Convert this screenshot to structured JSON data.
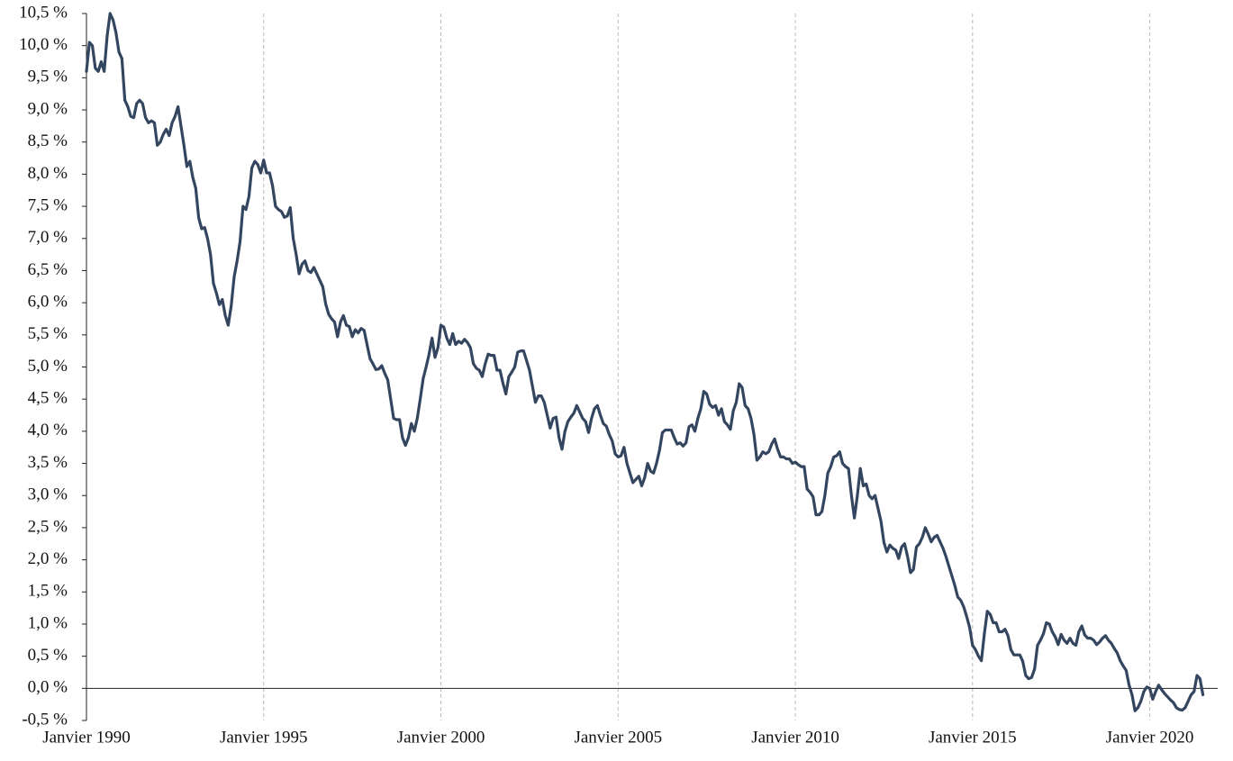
{
  "chart_data": {
    "type": "line",
    "color": "#34465f",
    "grid": "x",
    "ylim": [
      -0.5,
      10.5
    ],
    "yticks": [
      {
        "value": -0.5,
        "label": "-0,5 %"
      },
      {
        "value": 0,
        "label": "0,0 %"
      },
      {
        "value": 0.5,
        "label": "0,5 %"
      },
      {
        "value": 1,
        "label": "1,0 %"
      },
      {
        "value": 1.5,
        "label": "1,5 %"
      },
      {
        "value": 2,
        "label": "2,0 %"
      },
      {
        "value": 2.5,
        "label": "2,5 %"
      },
      {
        "value": 3,
        "label": "3,0 %"
      },
      {
        "value": 3.5,
        "label": "3,5 %"
      },
      {
        "value": 4,
        "label": "4,0 %"
      },
      {
        "value": 4.5,
        "label": "4,5 %"
      },
      {
        "value": 5,
        "label": "5,0 %"
      },
      {
        "value": 5.5,
        "label": "5,5 %"
      },
      {
        "value": 6,
        "label": "6,0 %"
      },
      {
        "value": 6.5,
        "label": "6,5 %"
      },
      {
        "value": 7,
        "label": "7,0 %"
      },
      {
        "value": 7.5,
        "label": "7,5 %"
      },
      {
        "value": 8,
        "label": "8,0 %"
      },
      {
        "value": 8.5,
        "label": "8,5 %"
      },
      {
        "value": 9,
        "label": "9,0 %"
      },
      {
        "value": 9.5,
        "label": "9,5 %"
      },
      {
        "value": 10,
        "label": "10,0 %"
      },
      {
        "value": 10.5,
        "label": "10,5 %"
      }
    ],
    "xlim": [
      "1990-01",
      "2021-12"
    ],
    "xticks": [
      {
        "value": "1990-01",
        "label": "Janvier 1990"
      },
      {
        "value": "1995-01",
        "label": "Janvier 1995"
      },
      {
        "value": "2000-01",
        "label": "Janvier 2000"
      },
      {
        "value": "2005-01",
        "label": "Janvier 2005"
      },
      {
        "value": "2010-01",
        "label": "Janvier 2010"
      },
      {
        "value": "2015-01",
        "label": "Janvier 2015"
      },
      {
        "value": "2020-01",
        "label": "Janvier 2020"
      }
    ],
    "x": [
      "1990-01",
      "1990-02",
      "1990-03",
      "1990-04",
      "1990-05",
      "1990-06",
      "1990-07",
      "1990-08",
      "1990-09",
      "1990-10",
      "1990-11",
      "1990-12",
      "1991-01",
      "1991-02",
      "1991-03",
      "1991-04",
      "1991-05",
      "1991-06",
      "1991-07",
      "1991-08",
      "1991-09",
      "1991-10",
      "1991-11",
      "1991-12",
      "1992-01",
      "1992-02",
      "1992-03",
      "1992-04",
      "1992-05",
      "1992-06",
      "1992-07",
      "1992-08",
      "1992-09",
      "1992-10",
      "1992-11",
      "1992-12",
      "1993-01",
      "1993-02",
      "1993-03",
      "1993-04",
      "1993-05",
      "1993-06",
      "1993-07",
      "1993-08",
      "1993-09",
      "1993-10",
      "1993-11",
      "1993-12",
      "1994-01",
      "1994-02",
      "1994-03",
      "1994-04",
      "1994-05",
      "1994-06",
      "1994-07",
      "1994-08",
      "1994-09",
      "1994-10",
      "1994-11",
      "1994-12",
      "1995-01",
      "1995-02",
      "1995-03",
      "1995-04",
      "1995-05",
      "1995-06",
      "1995-07",
      "1995-08",
      "1995-09",
      "1995-10",
      "1995-11",
      "1995-12",
      "1996-01",
      "1996-02",
      "1996-03",
      "1996-04",
      "1996-05",
      "1996-06",
      "1996-07",
      "1996-08",
      "1996-09",
      "1996-10",
      "1996-11",
      "1996-12",
      "1997-01",
      "1997-02",
      "1997-03",
      "1997-04",
      "1997-05",
      "1997-06",
      "1997-07",
      "1997-08",
      "1997-09",
      "1997-10",
      "1997-11",
      "1997-12",
      "1998-01",
      "1998-02",
      "1998-03",
      "1998-04",
      "1998-05",
      "1998-06",
      "1998-07",
      "1998-08",
      "1998-09",
      "1998-10",
      "1998-11",
      "1998-12",
      "1999-01",
      "1999-02",
      "1999-03",
      "1999-04",
      "1999-05",
      "1999-06",
      "1999-07",
      "1999-08",
      "1999-09",
      "1999-10",
      "1999-11",
      "1999-12",
      "2000-01",
      "2000-02",
      "2000-03",
      "2000-04",
      "2000-05",
      "2000-06",
      "2000-07",
      "2000-08",
      "2000-09",
      "2000-10",
      "2000-11",
      "2000-12",
      "2001-01",
      "2001-02",
      "2001-03",
      "2001-04",
      "2001-05",
      "2001-06",
      "2001-07",
      "2001-08",
      "2001-09",
      "2001-10",
      "2001-11",
      "2001-12",
      "2002-01",
      "2002-02",
      "2002-03",
      "2002-04",
      "2002-05",
      "2002-06",
      "2002-07",
      "2002-08",
      "2002-09",
      "2002-10",
      "2002-11",
      "2002-12",
      "2003-01",
      "2003-02",
      "2003-03",
      "2003-04",
      "2003-05",
      "2003-06",
      "2003-07",
      "2003-08",
      "2003-09",
      "2003-10",
      "2003-11",
      "2003-12",
      "2004-01",
      "2004-02",
      "2004-03",
      "2004-04",
      "2004-05",
      "2004-06",
      "2004-07",
      "2004-08",
      "2004-09",
      "2004-10",
      "2004-11",
      "2004-12",
      "2005-01",
      "2005-02",
      "2005-03",
      "2005-04",
      "2005-05",
      "2005-06",
      "2005-07",
      "2005-08",
      "2005-09",
      "2005-10",
      "2005-11",
      "2005-12",
      "2006-01",
      "2006-02",
      "2006-03",
      "2006-04",
      "2006-05",
      "2006-06",
      "2006-07",
      "2006-08",
      "2006-09",
      "2006-10",
      "2006-11",
      "2006-12",
      "2007-01",
      "2007-02",
      "2007-03",
      "2007-04",
      "2007-05",
      "2007-06",
      "2007-07",
      "2007-08",
      "2007-09",
      "2007-10",
      "2007-11",
      "2007-12",
      "2008-01",
      "2008-02",
      "2008-03",
      "2008-04",
      "2008-05",
      "2008-06",
      "2008-07",
      "2008-08",
      "2008-09",
      "2008-10",
      "2008-11",
      "2008-12",
      "2009-01",
      "2009-02",
      "2009-03",
      "2009-04",
      "2009-05",
      "2009-06",
      "2009-07",
      "2009-08",
      "2009-09",
      "2009-10",
      "2009-11",
      "2009-12",
      "2010-01",
      "2010-02",
      "2010-03",
      "2010-04",
      "2010-05",
      "2010-06",
      "2010-07",
      "2010-08",
      "2010-09",
      "2010-10",
      "2010-11",
      "2010-12",
      "2011-01",
      "2011-02",
      "2011-03",
      "2011-04",
      "2011-05",
      "2011-06",
      "2011-07",
      "2011-08",
      "2011-09",
      "2011-10",
      "2011-11",
      "2011-12",
      "2012-01",
      "2012-02",
      "2012-03",
      "2012-04",
      "2012-05",
      "2012-06",
      "2012-07",
      "2012-08",
      "2012-09",
      "2012-10",
      "2012-11",
      "2012-12",
      "2013-01",
      "2013-02",
      "2013-03",
      "2013-04",
      "2013-05",
      "2013-06",
      "2013-07",
      "2013-08",
      "2013-09",
      "2013-10",
      "2013-11",
      "2013-12",
      "2014-01",
      "2014-02",
      "2014-03",
      "2014-04",
      "2014-05",
      "2014-06",
      "2014-07",
      "2014-08",
      "2014-09",
      "2014-10",
      "2014-11",
      "2014-12",
      "2015-01",
      "2015-02",
      "2015-03",
      "2015-04",
      "2015-05",
      "2015-06",
      "2015-07",
      "2015-08",
      "2015-09",
      "2015-10",
      "2015-11",
      "2015-12",
      "2016-01",
      "2016-02",
      "2016-03",
      "2016-04",
      "2016-05",
      "2016-06",
      "2016-07",
      "2016-08",
      "2016-09",
      "2016-10",
      "2016-11",
      "2016-12",
      "2017-01",
      "2017-02",
      "2017-03",
      "2017-04",
      "2017-05",
      "2017-06",
      "2017-07",
      "2017-08",
      "2017-09",
      "2017-10",
      "2017-11",
      "2017-12",
      "2018-01",
      "2018-02",
      "2018-03",
      "2018-04",
      "2018-05",
      "2018-06",
      "2018-07",
      "2018-08",
      "2018-09",
      "2018-10",
      "2018-11",
      "2018-12",
      "2019-01",
      "2019-02",
      "2019-03",
      "2019-04",
      "2019-05",
      "2019-06",
      "2019-07",
      "2019-08",
      "2019-09",
      "2019-10",
      "2019-11",
      "2019-12",
      "2020-01",
      "2020-02",
      "2020-03",
      "2020-04",
      "2020-05",
      "2020-06",
      "2020-07",
      "2020-08",
      "2020-09",
      "2020-10",
      "2020-11",
      "2020-12",
      "2021-01",
      "2021-02",
      "2021-03",
      "2021-04",
      "2021-05",
      "2021-06",
      "2021-07"
    ],
    "values": [
      9.6,
      10.05,
      10.0,
      9.65,
      9.6,
      9.75,
      9.6,
      10.15,
      10.5,
      10.4,
      10.2,
      9.9,
      9.8,
      9.15,
      9.05,
      8.9,
      8.88,
      9.1,
      9.15,
      9.1,
      8.88,
      8.8,
      8.83,
      8.8,
      8.45,
      8.5,
      8.62,
      8.7,
      8.6,
      8.8,
      8.9,
      9.05,
      8.75,
      8.45,
      8.12,
      8.2,
      7.95,
      7.78,
      7.32,
      7.15,
      7.17,
      7.0,
      6.75,
      6.3,
      6.15,
      5.97,
      6.05,
      5.8,
      5.65,
      5.95,
      6.4,
      6.65,
      6.95,
      7.5,
      7.45,
      7.65,
      8.1,
      8.2,
      8.15,
      8.02,
      8.22,
      8.02,
      8.02,
      7.82,
      7.5,
      7.45,
      7.42,
      7.33,
      7.35,
      7.48,
      7.0,
      6.75,
      6.45,
      6.6,
      6.65,
      6.5,
      6.47,
      6.55,
      6.45,
      6.35,
      6.25,
      5.98,
      5.82,
      5.75,
      5.7,
      5.47,
      5.7,
      5.8,
      5.65,
      5.63,
      5.47,
      5.58,
      5.53,
      5.6,
      5.57,
      5.35,
      5.13,
      5.05,
      4.96,
      4.97,
      5.02,
      4.9,
      4.8,
      4.5,
      4.2,
      4.18,
      4.18,
      3.9,
      3.78,
      3.9,
      4.12,
      4.0,
      4.2,
      4.5,
      4.82,
      5.0,
      5.2,
      5.45,
      5.15,
      5.3,
      5.65,
      5.62,
      5.45,
      5.35,
      5.52,
      5.35,
      5.4,
      5.37,
      5.43,
      5.38,
      5.3,
      5.05,
      4.98,
      4.95,
      4.85,
      5.05,
      5.2,
      5.18,
      5.18,
      4.95,
      4.95,
      4.75,
      4.58,
      4.85,
      4.92,
      5.0,
      5.23,
      5.25,
      5.25,
      5.1,
      4.95,
      4.7,
      4.45,
      4.55,
      4.55,
      4.45,
      4.25,
      4.05,
      4.2,
      4.22,
      3.9,
      3.72,
      4.0,
      4.15,
      4.22,
      4.28,
      4.4,
      4.3,
      4.2,
      4.15,
      3.98,
      4.2,
      4.35,
      4.4,
      4.25,
      4.12,
      4.08,
      3.95,
      3.85,
      3.65,
      3.6,
      3.62,
      3.75,
      3.5,
      3.35,
      3.2,
      3.25,
      3.3,
      3.15,
      3.28,
      3.5,
      3.38,
      3.35,
      3.5,
      3.7,
      3.98,
      4.02,
      4.02,
      4.02,
      3.9,
      3.8,
      3.82,
      3.77,
      3.82,
      4.07,
      4.1,
      4.0,
      4.2,
      4.35,
      4.62,
      4.58,
      4.42,
      4.37,
      4.4,
      4.25,
      4.35,
      4.15,
      4.1,
      4.03,
      4.32,
      4.45,
      4.74,
      4.68,
      4.4,
      4.35,
      4.2,
      3.95,
      3.55,
      3.6,
      3.68,
      3.65,
      3.68,
      3.8,
      3.88,
      3.72,
      3.6,
      3.6,
      3.57,
      3.57,
      3.5,
      3.52,
      3.48,
      3.45,
      3.45,
      3.1,
      3.05,
      2.98,
      2.7,
      2.7,
      2.75,
      3.0,
      3.35,
      3.45,
      3.6,
      3.62,
      3.68,
      3.5,
      3.45,
      3.42,
      3.0,
      2.65,
      3.0,
      3.42,
      3.15,
      3.18,
      3.0,
      2.95,
      3.0,
      2.8,
      2.6,
      2.27,
      2.12,
      2.23,
      2.18,
      2.15,
      2.02,
      2.2,
      2.25,
      2.05,
      1.8,
      1.85,
      2.2,
      2.25,
      2.35,
      2.5,
      2.4,
      2.28,
      2.35,
      2.38,
      2.28,
      2.18,
      2.05,
      1.9,
      1.75,
      1.6,
      1.42,
      1.37,
      1.27,
      1.12,
      0.95,
      0.67,
      0.6,
      0.5,
      0.43,
      0.85,
      1.2,
      1.15,
      1.02,
      1.02,
      0.88,
      0.88,
      0.92,
      0.82,
      0.6,
      0.52,
      0.52,
      0.52,
      0.42,
      0.2,
      0.15,
      0.17,
      0.3,
      0.67,
      0.75,
      0.85,
      1.02,
      1.0,
      0.88,
      0.8,
      0.68,
      0.84,
      0.75,
      0.7,
      0.78,
      0.7,
      0.67,
      0.88,
      0.97,
      0.83,
      0.78,
      0.78,
      0.75,
      0.68,
      0.72,
      0.78,
      0.82,
      0.75,
      0.7,
      0.62,
      0.55,
      0.43,
      0.35,
      0.28,
      0.05,
      -0.1,
      -0.35,
      -0.3,
      -0.2,
      -0.05,
      0.02,
      0.0,
      -0.17,
      -0.05,
      0.05,
      -0.02,
      -0.08,
      -0.13,
      -0.18,
      -0.22,
      -0.3,
      -0.33,
      -0.34,
      -0.3,
      -0.2,
      -0.1,
      -0.05,
      0.2,
      0.15,
      -0.1
    ]
  }
}
